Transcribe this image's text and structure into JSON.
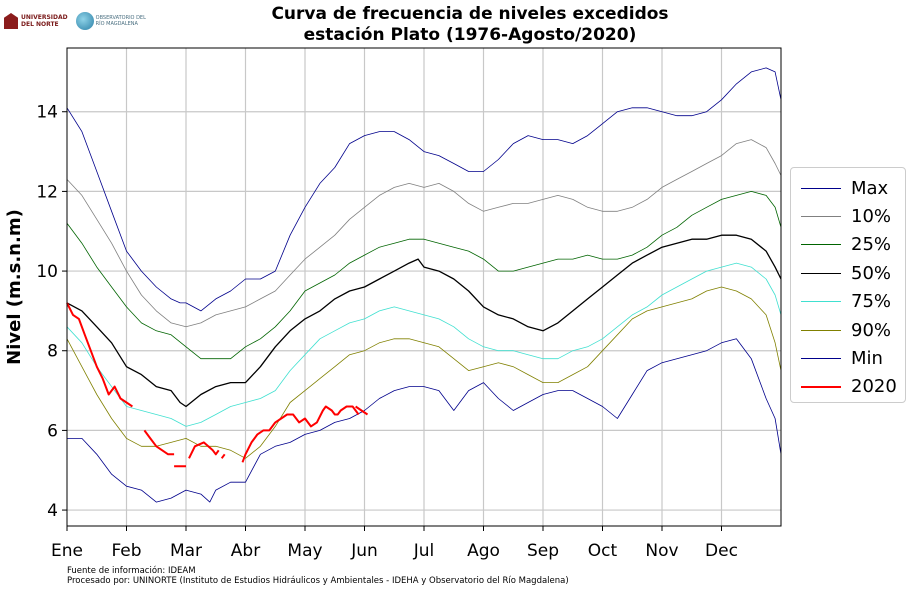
{
  "header": {
    "title_line1": "Curva de frecuencia de niveles excedidos",
    "title_line2": "estación Plato (1976-Agosto/2020)",
    "logo_un_line1": "UNIVERSIDAD",
    "logo_un_line2": "DEL NORTE",
    "logo_obs_line1": "OBSERVATORIO DEL",
    "logo_obs_line2": "RÍO MAGDALENA"
  },
  "footer": {
    "source": "Fuente de información: IDEAM",
    "processed": "Procesado por: UNINORTE (Instituto de Estudios Hidráulicos y Ambientales - IDEHA y Observatorio del Río Magdalena)"
  },
  "chart_data": {
    "type": "line",
    "title": "Curva de frecuencia de niveles excedidos estación Plato (1976-Agosto/2020)",
    "ylabel": "Nivel (m.s.n.m)",
    "xlabel": "",
    "ylim": [
      3.6,
      15.6
    ],
    "xlim": [
      0,
      12
    ],
    "yticks": [
      4,
      6,
      8,
      10,
      12,
      14
    ],
    "x_tick_labels": [
      "Ene",
      "Feb",
      "Mar",
      "Abr",
      "May",
      "Jun",
      "Jul",
      "Ago",
      "Sep",
      "Oct",
      "Nov",
      "Dec"
    ],
    "grid": true,
    "legend_position": "right",
    "x_unit": "months from start of year",
    "series": [
      {
        "name": "Max",
        "color": "#00008b",
        "width": 0.8,
        "x": [
          0,
          0.25,
          0.5,
          0.75,
          1.0,
          1.25,
          1.5,
          1.75,
          1.9,
          2.0,
          2.25,
          2.5,
          2.75,
          3.0,
          3.25,
          3.5,
          3.75,
          4.0,
          4.25,
          4.5,
          4.75,
          5.0,
          5.25,
          5.5,
          5.75,
          6.0,
          6.25,
          6.5,
          6.75,
          7.0,
          7.25,
          7.5,
          7.75,
          8.0,
          8.25,
          8.5,
          8.75,
          9.0,
          9.25,
          9.5,
          9.75,
          10.0,
          10.25,
          10.5,
          10.75,
          11.0,
          11.25,
          11.5,
          11.75,
          11.9,
          12.0
        ],
        "y": [
          14.1,
          13.5,
          12.5,
          11.5,
          10.5,
          10.0,
          9.6,
          9.3,
          9.2,
          9.2,
          9.0,
          9.3,
          9.5,
          9.8,
          9.8,
          10.0,
          10.9,
          11.6,
          12.2,
          12.6,
          13.2,
          13.4,
          13.5,
          13.5,
          13.3,
          13.0,
          12.9,
          12.7,
          12.5,
          12.5,
          12.8,
          13.2,
          13.4,
          13.3,
          13.3,
          13.2,
          13.4,
          13.7,
          14.0,
          14.1,
          14.1,
          14.0,
          13.9,
          13.9,
          14.0,
          14.3,
          14.7,
          15.0,
          15.1,
          15.0,
          14.3
        ]
      },
      {
        "name": "10%",
        "color": "#808080",
        "width": 0.8,
        "x": [
          0,
          0.25,
          0.5,
          0.75,
          1.0,
          1.25,
          1.5,
          1.75,
          2.0,
          2.25,
          2.5,
          2.75,
          3.0,
          3.25,
          3.5,
          3.75,
          4.0,
          4.25,
          4.5,
          4.75,
          5.0,
          5.25,
          5.5,
          5.75,
          6.0,
          6.25,
          6.5,
          6.75,
          7.0,
          7.25,
          7.5,
          7.75,
          8.0,
          8.25,
          8.5,
          8.75,
          9.0,
          9.25,
          9.5,
          9.75,
          10.0,
          10.25,
          10.5,
          10.75,
          11.0,
          11.25,
          11.5,
          11.75,
          11.9,
          12.0
        ],
        "y": [
          12.3,
          11.9,
          11.3,
          10.7,
          10.0,
          9.4,
          9.0,
          8.7,
          8.6,
          8.7,
          8.9,
          9.0,
          9.1,
          9.3,
          9.5,
          9.9,
          10.3,
          10.6,
          10.9,
          11.3,
          11.6,
          11.9,
          12.1,
          12.2,
          12.1,
          12.2,
          12.0,
          11.7,
          11.5,
          11.6,
          11.7,
          11.7,
          11.8,
          11.9,
          11.8,
          11.6,
          11.5,
          11.5,
          11.6,
          11.8,
          12.1,
          12.3,
          12.5,
          12.7,
          12.9,
          13.2,
          13.3,
          13.1,
          12.7,
          12.4
        ]
      },
      {
        "name": "25%",
        "color": "#006400",
        "width": 0.8,
        "x": [
          0,
          0.25,
          0.5,
          0.75,
          1.0,
          1.25,
          1.5,
          1.75,
          2.0,
          2.25,
          2.5,
          2.75,
          3.0,
          3.25,
          3.5,
          3.75,
          4.0,
          4.25,
          4.5,
          4.75,
          5.0,
          5.25,
          5.5,
          5.75,
          6.0,
          6.25,
          6.5,
          6.75,
          7.0,
          7.25,
          7.5,
          7.75,
          8.0,
          8.25,
          8.5,
          8.75,
          9.0,
          9.25,
          9.5,
          9.75,
          10.0,
          10.25,
          10.5,
          10.75,
          11.0,
          11.25,
          11.5,
          11.75,
          11.9,
          12.0
        ],
        "y": [
          11.2,
          10.7,
          10.1,
          9.6,
          9.1,
          8.7,
          8.5,
          8.4,
          8.1,
          7.8,
          7.8,
          7.8,
          8.1,
          8.3,
          8.6,
          9.0,
          9.5,
          9.7,
          9.9,
          10.2,
          10.4,
          10.6,
          10.7,
          10.8,
          10.8,
          10.7,
          10.6,
          10.5,
          10.3,
          10.0,
          10.0,
          10.1,
          10.2,
          10.3,
          10.3,
          10.4,
          10.3,
          10.3,
          10.4,
          10.6,
          10.9,
          11.1,
          11.4,
          11.6,
          11.8,
          11.9,
          12.0,
          11.9,
          11.6,
          11.1
        ]
      },
      {
        "name": "50%",
        "color": "#000000",
        "width": 1.3,
        "x": [
          0,
          0.25,
          0.5,
          0.75,
          1.0,
          1.25,
          1.5,
          1.75,
          1.9,
          2.0,
          2.25,
          2.5,
          2.75,
          3.0,
          3.25,
          3.5,
          3.75,
          4.0,
          4.25,
          4.5,
          4.75,
          5.0,
          5.25,
          5.5,
          5.75,
          5.9,
          6.0,
          6.25,
          6.5,
          6.75,
          7.0,
          7.25,
          7.5,
          7.75,
          8.0,
          8.25,
          8.5,
          8.75,
          9.0,
          9.25,
          9.5,
          9.75,
          10.0,
          10.25,
          10.5,
          10.75,
          11.0,
          11.25,
          11.5,
          11.75,
          11.9,
          12.0
        ],
        "y": [
          9.2,
          9.0,
          8.6,
          8.2,
          7.6,
          7.4,
          7.1,
          7.0,
          6.7,
          6.6,
          6.9,
          7.1,
          7.2,
          7.2,
          7.6,
          8.1,
          8.5,
          8.8,
          9.0,
          9.3,
          9.5,
          9.6,
          9.8,
          10.0,
          10.2,
          10.3,
          10.1,
          10.0,
          9.8,
          9.5,
          9.1,
          8.9,
          8.8,
          8.6,
          8.5,
          8.7,
          9.0,
          9.3,
          9.6,
          9.9,
          10.2,
          10.4,
          10.6,
          10.7,
          10.8,
          10.8,
          10.9,
          10.9,
          10.8,
          10.5,
          10.1,
          9.8
        ]
      },
      {
        "name": "75%",
        "color": "#40e0d0",
        "width": 0.8,
        "x": [
          0,
          0.25,
          0.5,
          0.75,
          1.0,
          1.25,
          1.5,
          1.75,
          2.0,
          2.25,
          2.5,
          2.75,
          3.0,
          3.25,
          3.5,
          3.75,
          4.0,
          4.25,
          4.5,
          4.75,
          5.0,
          5.25,
          5.5,
          5.75,
          6.0,
          6.25,
          6.5,
          6.75,
          7.0,
          7.25,
          7.5,
          7.75,
          8.0,
          8.25,
          8.5,
          8.75,
          9.0,
          9.25,
          9.5,
          9.75,
          10.0,
          10.25,
          10.5,
          10.75,
          11.0,
          11.25,
          11.5,
          11.75,
          11.9,
          12.0
        ],
        "y": [
          8.6,
          8.2,
          7.6,
          7.1,
          6.6,
          6.5,
          6.4,
          6.3,
          6.1,
          6.2,
          6.4,
          6.6,
          6.7,
          6.8,
          7.0,
          7.5,
          7.9,
          8.3,
          8.5,
          8.7,
          8.8,
          9.0,
          9.1,
          9.0,
          8.9,
          8.8,
          8.6,
          8.3,
          8.1,
          8.0,
          8.0,
          7.9,
          7.8,
          7.8,
          8.0,
          8.1,
          8.3,
          8.6,
          8.9,
          9.1,
          9.4,
          9.6,
          9.8,
          10.0,
          10.1,
          10.2,
          10.1,
          9.8,
          9.4,
          8.9
        ]
      },
      {
        "name": "90%",
        "color": "#808000",
        "width": 0.8,
        "x": [
          0,
          0.25,
          0.5,
          0.75,
          1.0,
          1.25,
          1.5,
          1.75,
          2.0,
          2.25,
          2.5,
          2.75,
          3.0,
          3.25,
          3.5,
          3.75,
          4.0,
          4.25,
          4.5,
          4.75,
          5.0,
          5.25,
          5.5,
          5.75,
          6.0,
          6.25,
          6.5,
          6.75,
          7.0,
          7.25,
          7.5,
          7.75,
          8.0,
          8.25,
          8.5,
          8.75,
          9.0,
          9.25,
          9.5,
          9.75,
          10.0,
          10.25,
          10.5,
          10.75,
          11.0,
          11.25,
          11.5,
          11.75,
          11.9,
          12.0
        ],
        "y": [
          8.3,
          7.6,
          6.9,
          6.3,
          5.8,
          5.6,
          5.6,
          5.7,
          5.8,
          5.6,
          5.6,
          5.5,
          5.3,
          5.6,
          6.1,
          6.7,
          7.0,
          7.3,
          7.6,
          7.9,
          8.0,
          8.2,
          8.3,
          8.3,
          8.2,
          8.1,
          7.8,
          7.5,
          7.6,
          7.7,
          7.6,
          7.4,
          7.2,
          7.2,
          7.4,
          7.6,
          8.0,
          8.4,
          8.8,
          9.0,
          9.1,
          9.2,
          9.3,
          9.5,
          9.6,
          9.5,
          9.3,
          8.9,
          8.2,
          7.5
        ]
      },
      {
        "name": "Min",
        "color": "#00008b",
        "width": 0.8,
        "x": [
          0,
          0.25,
          0.5,
          0.75,
          1.0,
          1.25,
          1.5,
          1.75,
          2.0,
          2.25,
          2.4,
          2.5,
          2.75,
          3.0,
          3.25,
          3.5,
          3.75,
          4.0,
          4.25,
          4.5,
          4.75,
          5.0,
          5.25,
          5.5,
          5.75,
          6.0,
          6.25,
          6.5,
          6.75,
          7.0,
          7.25,
          7.5,
          7.75,
          8.0,
          8.25,
          8.5,
          8.75,
          9.0,
          9.25,
          9.5,
          9.75,
          10.0,
          10.25,
          10.5,
          10.75,
          11.0,
          11.25,
          11.5,
          11.75,
          11.9,
          12.0
        ],
        "y": [
          5.8,
          5.8,
          5.4,
          4.9,
          4.6,
          4.5,
          4.2,
          4.3,
          4.5,
          4.4,
          4.2,
          4.5,
          4.7,
          4.7,
          5.4,
          5.6,
          5.7,
          5.9,
          6.0,
          6.2,
          6.3,
          6.5,
          6.8,
          7.0,
          7.1,
          7.1,
          7.0,
          6.5,
          7.0,
          7.2,
          6.8,
          6.5,
          6.7,
          6.9,
          7.0,
          7.0,
          6.8,
          6.6,
          6.3,
          6.9,
          7.5,
          7.7,
          7.8,
          7.9,
          8.0,
          8.2,
          8.3,
          7.8,
          6.8,
          6.3,
          5.4
        ]
      },
      {
        "name": "2020",
        "color": "#ff0000",
        "width": 2.0,
        "x": [
          0,
          0.1,
          0.2,
          0.3,
          0.4,
          0.5,
          0.6,
          0.7,
          0.8,
          0.9,
          1.0,
          1.1,
          null,
          1.3,
          1.4,
          1.5,
          1.6,
          1.7,
          1.8,
          null,
          1.8,
          1.9,
          2.0,
          null,
          2.05,
          2.15,
          2.3,
          2.45,
          2.5,
          2.55,
          null,
          2.6,
          2.65,
          null,
          2.95,
          3.0,
          3.1,
          3.2,
          3.3,
          3.4,
          3.5,
          3.6,
          3.7,
          3.8,
          3.9,
          4.0,
          4.1,
          4.2,
          4.3,
          4.35,
          4.45,
          4.5,
          4.55,
          4.6,
          4.7,
          4.8,
          4.9,
          null,
          4.85,
          4.95,
          5.05
        ],
        "y": [
          9.2,
          8.9,
          8.8,
          8.4,
          8.0,
          7.6,
          7.3,
          6.9,
          7.1,
          6.8,
          6.7,
          6.6,
          null,
          6.0,
          5.8,
          5.6,
          5.5,
          5.4,
          5.4,
          null,
          5.1,
          5.1,
          5.1,
          null,
          5.3,
          5.6,
          5.7,
          5.5,
          5.4,
          5.5,
          null,
          5.3,
          5.4,
          null,
          5.2,
          5.4,
          5.7,
          5.9,
          6.0,
          6.0,
          6.2,
          6.3,
          6.4,
          6.4,
          6.2,
          6.3,
          6.1,
          6.2,
          6.5,
          6.6,
          6.5,
          6.4,
          6.4,
          6.5,
          6.6,
          6.6,
          6.4,
          null,
          6.6,
          6.5,
          6.4
        ]
      }
    ]
  }
}
